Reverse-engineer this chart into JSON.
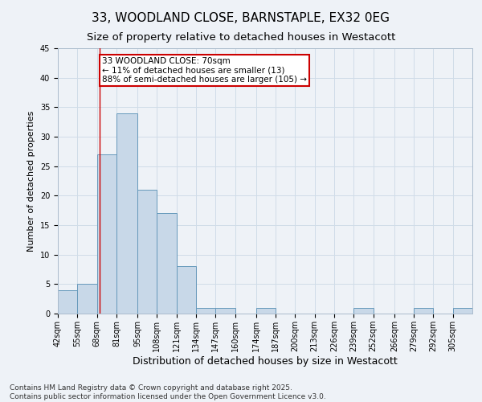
{
  "title": "33, WOODLAND CLOSE, BARNSTAPLE, EX32 0EG",
  "subtitle": "Size of property relative to detached houses in Westacott",
  "xlabel": "Distribution of detached houses by size in Westacott",
  "ylabel": "Number of detached properties",
  "bins": [
    42,
    55,
    68,
    81,
    95,
    108,
    121,
    134,
    147,
    160,
    174,
    187,
    200,
    213,
    226,
    239,
    252,
    266,
    279,
    292,
    305
  ],
  "values": [
    4,
    5,
    27,
    34,
    21,
    17,
    8,
    1,
    1,
    0,
    1,
    0,
    0,
    0,
    0,
    1,
    0,
    0,
    1,
    0,
    1
  ],
  "bar_color": "#c8d8e8",
  "bar_edge_color": "#6699bb",
  "bar_edge_width": 0.7,
  "grid_color": "#d0dce8",
  "background_color": "#eef2f7",
  "red_line_x": 70,
  "annotation_text": "33 WOODLAND CLOSE: 70sqm\n← 11% of detached houses are smaller (13)\n88% of semi-detached houses are larger (105) →",
  "annotation_box_color": "#ffffff",
  "annotation_box_edge_color": "#cc0000",
  "ylim": [
    0,
    45
  ],
  "yticks": [
    0,
    5,
    10,
    15,
    20,
    25,
    30,
    35,
    40,
    45
  ],
  "footer": "Contains HM Land Registry data © Crown copyright and database right 2025.\nContains public sector information licensed under the Open Government Licence v3.0.",
  "title_fontsize": 11,
  "subtitle_fontsize": 9.5,
  "axis_label_fontsize": 8,
  "tick_fontsize": 7,
  "annotation_fontsize": 7.5,
  "footer_fontsize": 6.5
}
